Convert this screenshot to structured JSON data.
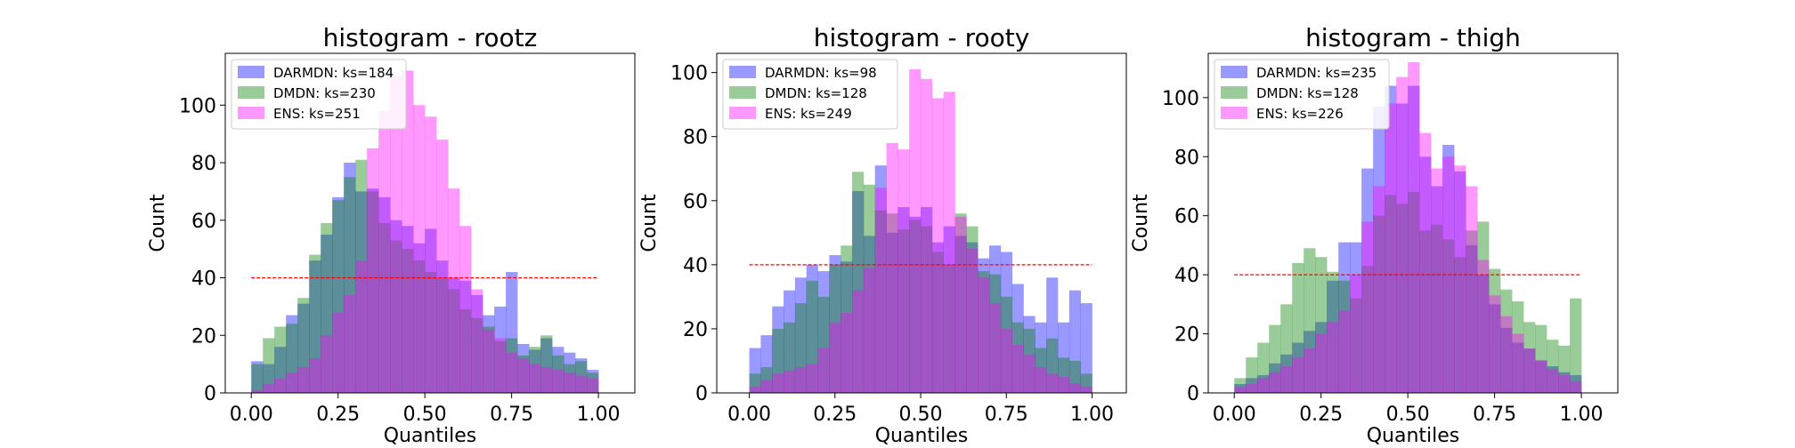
{
  "colors": {
    "DARMDN": "#0000ff",
    "DMDN": "#008000",
    "ENS": "#ff00ff",
    "reference": "#ff0000"
  },
  "chart_data": [
    {
      "type": "bar",
      "title": "histogram - rootz",
      "xlabel": "Quantiles",
      "ylabel": "Count",
      "xlim": [
        -0.075,
        1.105
      ],
      "ylim": [
        0,
        118
      ],
      "xticks": [
        "0.00",
        "0.25",
        "0.50",
        "0.75",
        "1.00"
      ],
      "yticks": [
        "0",
        "20",
        "40",
        "60",
        "80",
        "100"
      ],
      "bins": 30,
      "reference_line": 40,
      "legend_placement": "upper-left",
      "series": [
        {
          "name": "DARMDN: ks=184",
          "color": "DARMDN",
          "values": [
            11,
            10,
            16,
            27,
            31,
            46,
            55,
            68,
            80,
            70,
            71,
            68,
            60,
            58,
            52,
            57,
            46,
            40,
            39,
            34,
            27,
            30,
            42,
            17,
            15,
            19,
            16,
            14,
            12,
            8
          ]
        },
        {
          "name": "DMDN: ks=230",
          "color": "DMDN",
          "values": [
            10,
            19,
            23,
            24,
            33,
            48,
            59,
            67,
            75,
            81,
            70,
            59,
            53,
            50,
            46,
            42,
            40,
            36,
            29,
            26,
            23,
            18,
            19,
            13,
            16,
            20,
            13,
            10,
            11,
            7
          ]
        },
        {
          "name": "ENS: ks=251",
          "color": "ENS",
          "values": [
            1,
            3,
            5,
            7,
            9,
            12,
            20,
            28,
            34,
            46,
            85,
            98,
            110,
            112,
            100,
            96,
            88,
            71,
            58,
            36,
            22,
            19,
            14,
            12,
            10,
            9,
            8,
            7,
            6,
            5
          ]
        }
      ]
    },
    {
      "type": "bar",
      "title": "histogram - rooty",
      "xlabel": "Quantiles",
      "ylabel": "Count",
      "xlim": [
        -0.095,
        1.1
      ],
      "ylim": [
        0,
        106
      ],
      "xticks": [
        "0.00",
        "0.25",
        "0.50",
        "0.75",
        "1.00"
      ],
      "yticks": [
        "0",
        "20",
        "40",
        "60",
        "80",
        "100"
      ],
      "bins": 30,
      "reference_line": 40,
      "legend_placement": "upper-left",
      "series": [
        {
          "name": "DARMDN: ks=98",
          "color": "DARMDN",
          "values": [
            14,
            18,
            27,
            32,
            36,
            40,
            38,
            43,
            41,
            63,
            49,
            71,
            50,
            58,
            55,
            58,
            47,
            52,
            49,
            47,
            42,
            46,
            44,
            34,
            24,
            22,
            36,
            22,
            32,
            28
          ]
        },
        {
          "name": "DMDN: ks=128",
          "color": "DMDN",
          "values": [
            6,
            8,
            20,
            22,
            28,
            35,
            30,
            40,
            46,
            69,
            65,
            57,
            56,
            51,
            54,
            52,
            44,
            40,
            56,
            52,
            38,
            37,
            30,
            22,
            20,
            14,
            17,
            11,
            10,
            6
          ]
        },
        {
          "name": "ENS: ks=249",
          "color": "ENS",
          "values": [
            2,
            4,
            6,
            7,
            8,
            9,
            14,
            22,
            25,
            32,
            39,
            64,
            78,
            76,
            101,
            98,
            92,
            94,
            55,
            45,
            36,
            28,
            20,
            15,
            12,
            8,
            6,
            5,
            3,
            2
          ]
        }
      ]
    },
    {
      "type": "bar",
      "title": "histogram - thigh",
      "xlabel": "Quantiles",
      "ylabel": "Count",
      "xlim": [
        -0.075,
        1.105
      ],
      "ylim": [
        0,
        115
      ],
      "xticks": [
        "0.00",
        "0.25",
        "0.50",
        "0.75",
        "1.00"
      ],
      "yticks": [
        "0",
        "20",
        "40",
        "60",
        "80",
        "100"
      ],
      "bins": 30,
      "reference_line": 40,
      "legend_placement": "upper-left",
      "series": [
        {
          "name": "DARMDN: ks=235",
          "color": "DARMDN",
          "values": [
            3,
            5,
            6,
            10,
            13,
            17,
            21,
            24,
            38,
            51,
            51,
            76,
            97,
            104,
            98,
            104,
            80,
            70,
            84,
            75,
            50,
            40,
            30,
            22,
            17,
            15,
            11,
            9,
            7,
            6
          ]
        },
        {
          "name": "DMDN: ks=128",
          "color": "DMDN",
          "values": [
            5,
            12,
            17,
            23,
            30,
            44,
            49,
            46,
            41,
            38,
            32,
            43,
            60,
            67,
            64,
            68,
            55,
            57,
            52,
            46,
            55,
            58,
            42,
            35,
            31,
            24,
            23,
            18,
            16,
            32
          ]
        },
        {
          "name": "ENS: ks=226",
          "color": "ENS",
          "values": [
            2,
            3,
            5,
            7,
            9,
            12,
            15,
            20,
            24,
            28,
            40,
            58,
            70,
            98,
            107,
            112,
            88,
            76,
            80,
            77,
            70,
            45,
            33,
            26,
            20,
            15,
            11,
            8,
            6,
            4
          ]
        }
      ]
    }
  ]
}
